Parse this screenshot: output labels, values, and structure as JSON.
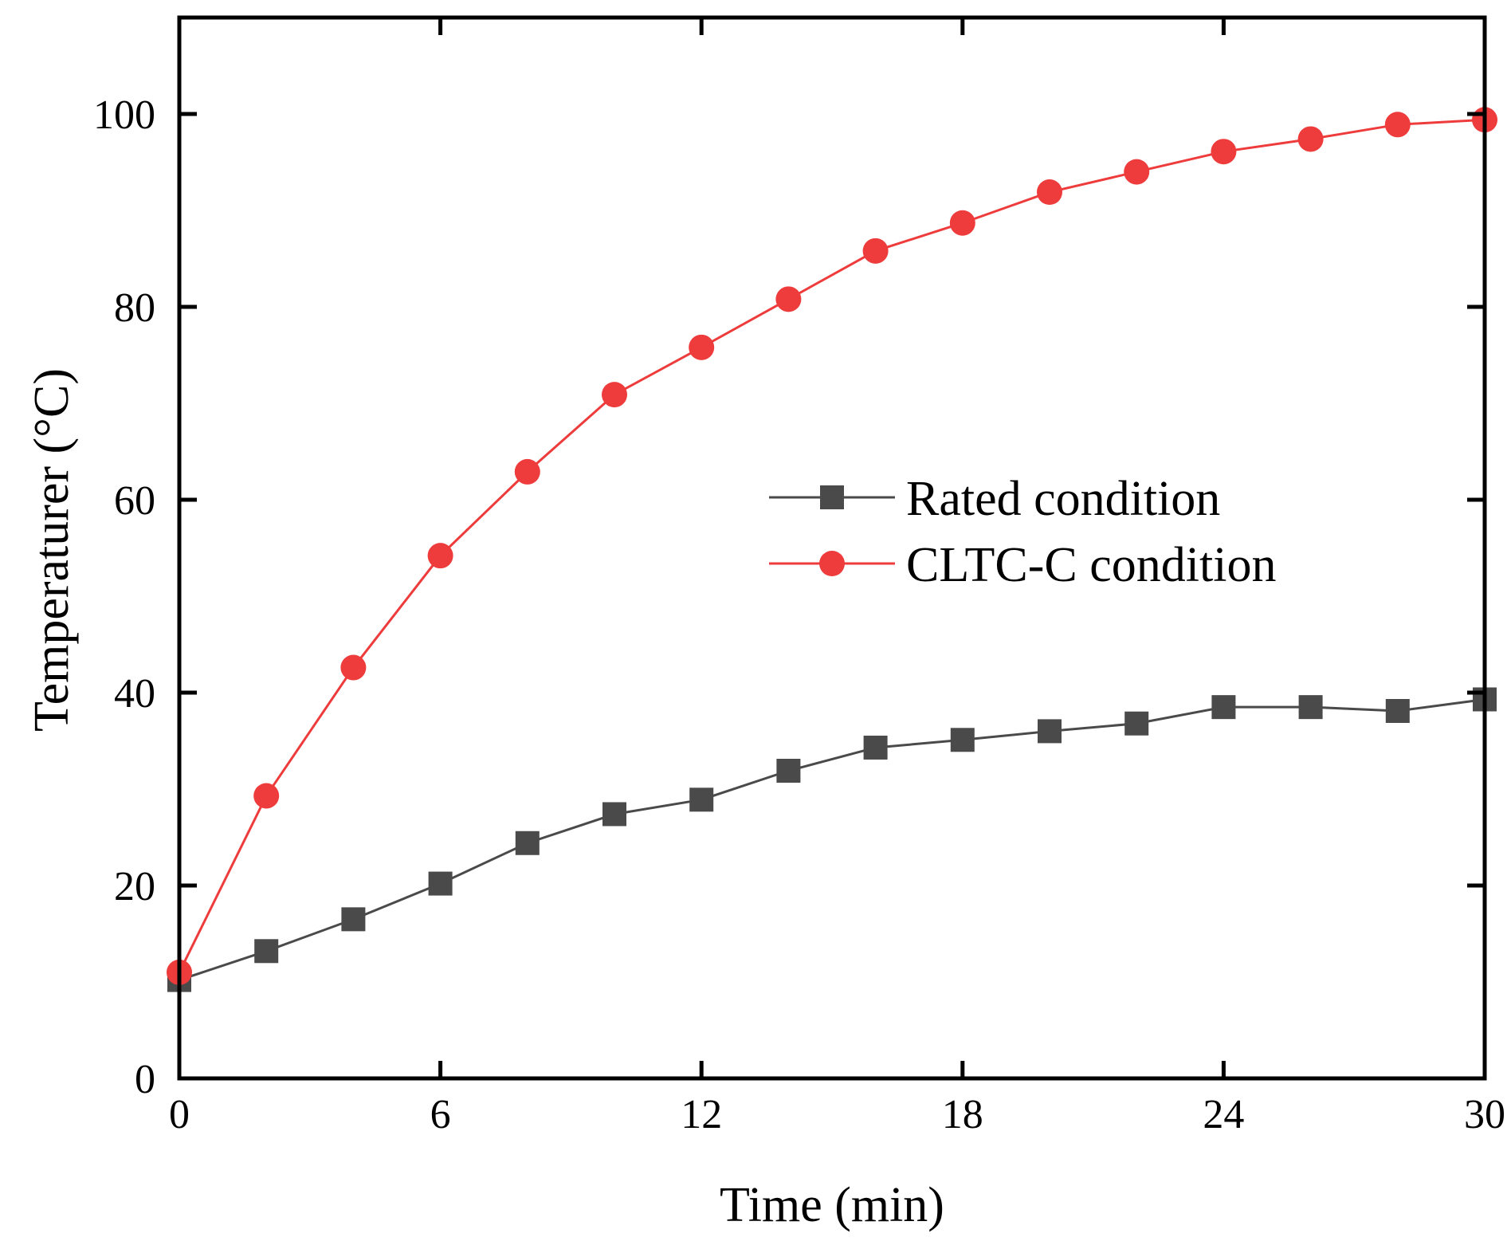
{
  "chart_data": {
    "type": "line",
    "title": "",
    "xlabel": "Time (min)",
    "ylabel": "Temperaturer (°C)",
    "xlim": [
      0,
      30
    ],
    "ylim": [
      0,
      110
    ],
    "xticks": [
      0,
      6,
      12,
      18,
      24,
      30
    ],
    "xtick_labels": [
      "0",
      "6",
      "12",
      "18",
      "24",
      "30"
    ],
    "yticks": [
      0,
      20,
      40,
      60,
      80,
      100
    ],
    "ytick_labels": [
      "0",
      "20",
      "40",
      "60",
      "80",
      "100"
    ],
    "grid": false,
    "legend_position": "center-right",
    "series": [
      {
        "name": "Rated condition",
        "color": "#4a4a4a",
        "marker": "square",
        "x": [
          0,
          2,
          4,
          6,
          8,
          10,
          12,
          14,
          16,
          18,
          20,
          22,
          24,
          26,
          28,
          30
        ],
        "values": [
          10.2,
          13.2,
          16.5,
          20.2,
          24.4,
          27.4,
          28.9,
          31.9,
          34.3,
          35.1,
          36.0,
          36.8,
          38.5,
          38.5,
          38.1,
          39.3
        ]
      },
      {
        "name": "CLTC-C condition",
        "color": "#ee3b3b",
        "marker": "circle",
        "x": [
          0,
          2,
          4,
          6,
          8,
          10,
          12,
          14,
          16,
          18,
          20,
          22,
          24,
          26,
          28,
          30
        ],
        "values": [
          11.0,
          29.3,
          42.6,
          54.2,
          62.9,
          70.9,
          75.8,
          80.8,
          85.8,
          88.7,
          91.9,
          94.0,
          96.1,
          97.4,
          98.9,
          99.4
        ]
      }
    ]
  }
}
